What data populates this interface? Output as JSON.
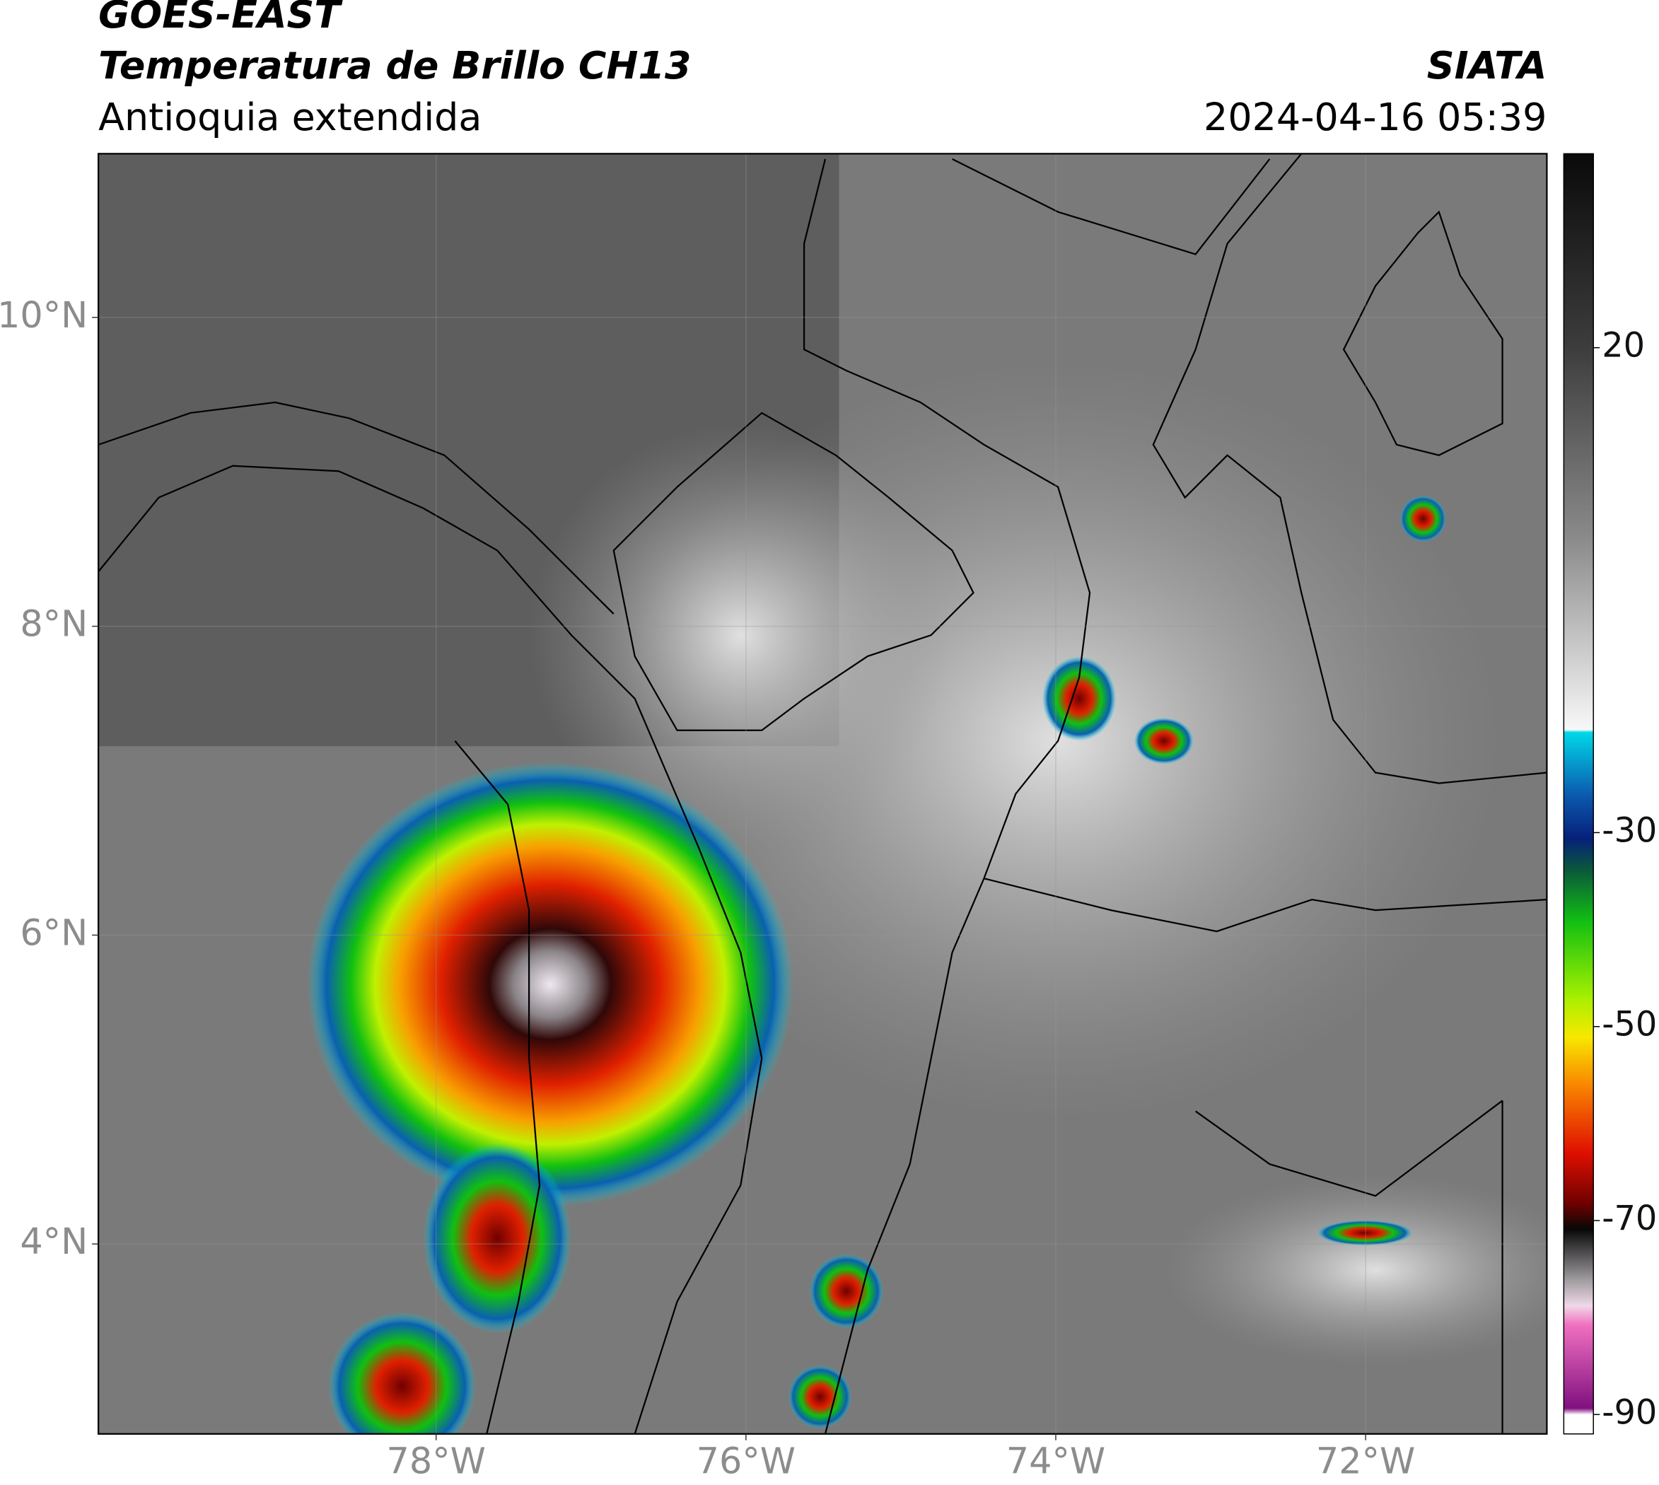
{
  "header": {
    "source": "GOES-EAST",
    "title": "Temperatura de Brillo CH13",
    "region": "Antioquia extendida",
    "agency": "SIATA",
    "datetime": "2024-04-16 05:39"
  },
  "map": {
    "xlim": [
      -80.18,
      -70.83
    ],
    "ylim": [
      2.77,
      11.06
    ],
    "xticks": [
      {
        "value": -78,
        "label": "78°W"
      },
      {
        "value": -76,
        "label": "76°W"
      },
      {
        "value": -74,
        "label": "74°W"
      },
      {
        "value": -72,
        "label": "72°W"
      }
    ],
    "yticks": [
      {
        "value": 4,
        "label": "4°N"
      },
      {
        "value": 6,
        "label": "6°N"
      },
      {
        "value": 8,
        "label": "8°N"
      },
      {
        "value": 10,
        "label": "10°N"
      }
    ]
  },
  "colorbar": {
    "lim": [
      -92,
      40
    ],
    "ticks": [
      20,
      -30,
      -50,
      -70,
      -90
    ]
  }
}
